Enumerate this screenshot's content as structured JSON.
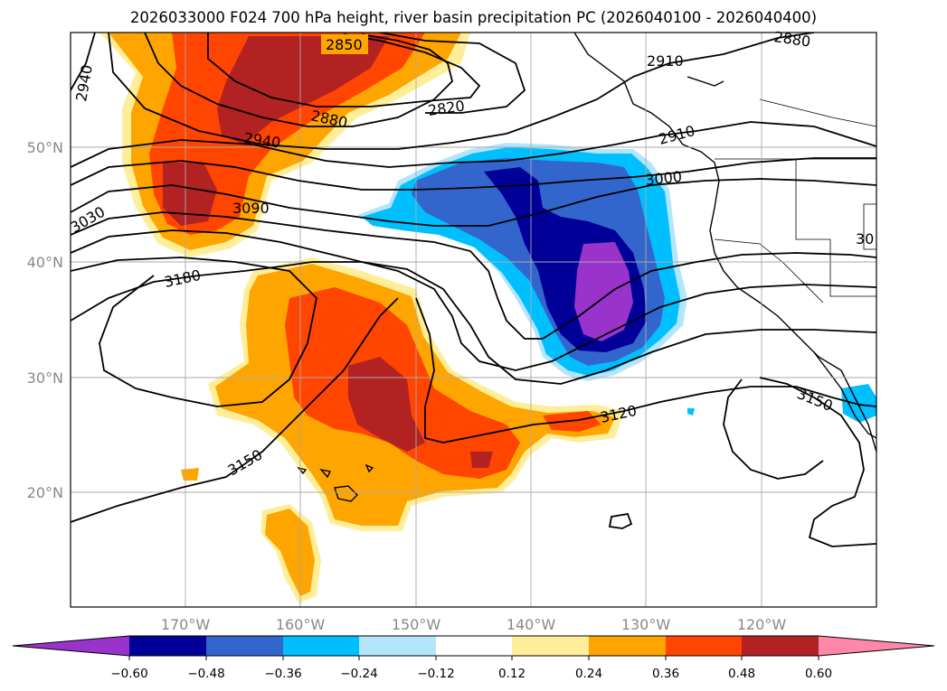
{
  "title": "2026033000 F024 700 hPa height, river basin precipitation PC (2026040100 - 2026040400)",
  "map": {
    "lat_labels": [
      "50°N",
      "40°N",
      "30°N",
      "20°N"
    ],
    "lon_labels": [
      "170°W",
      "160°W",
      "150°W",
      "140°W",
      "130°W",
      "120°W"
    ],
    "contour_labels": [
      "2850",
      "2880",
      "2820",
      "2880",
      "2910",
      "2940",
      "2940",
      "2910",
      "3000",
      "3030",
      "3090",
      "3180",
      "3150",
      "3120",
      "3150",
      "30"
    ]
  },
  "colorbar": {
    "colors": [
      "#9933cc",
      "#000099",
      "#3366cc",
      "#00bfff",
      "#b3e5fc",
      "#ffffff",
      "#ffee99",
      "#ffa500",
      "#ff4500",
      "#b22222",
      "#ff88aa"
    ],
    "tick_labels": [
      "−0.60",
      "−0.48",
      "−0.36",
      "−0.24",
      "−0.12",
      "0.12",
      "0.24",
      "0.36",
      "0.48",
      "0.60"
    ]
  }
}
